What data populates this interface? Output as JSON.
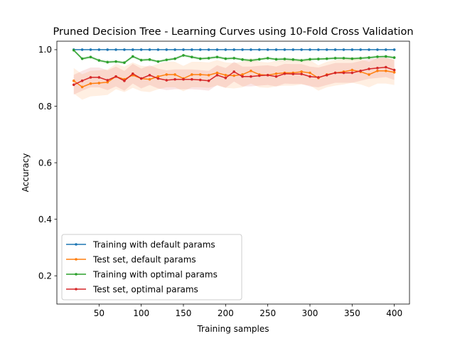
{
  "chart_data": {
    "type": "line",
    "title": "Pruned Decision Tree - Learning Curves using 10-Fold Cross Validation",
    "xlabel": "Training samples",
    "ylabel": "Accuracy",
    "xlim": [
      0,
      418
    ],
    "ylim": [
      0.1,
      1.03
    ],
    "xticks": [
      50,
      100,
      150,
      200,
      250,
      300,
      350,
      400
    ],
    "yticks": [
      0.2,
      0.4,
      0.6,
      0.8,
      1.0
    ],
    "xtick_labels": [
      "50",
      "100",
      "150",
      "200",
      "250",
      "300",
      "350",
      "400"
    ],
    "ytick_labels": [
      "0.2",
      "0.4",
      "0.6",
      "0.8",
      "1.0"
    ],
    "grid": false,
    "legend_position": "lower-left",
    "x": [
      20,
      30,
      40,
      50,
      60,
      70,
      80,
      90,
      100,
      110,
      120,
      130,
      140,
      150,
      160,
      170,
      180,
      190,
      200,
      210,
      220,
      230,
      240,
      250,
      260,
      270,
      280,
      290,
      300,
      310,
      320,
      330,
      340,
      350,
      360,
      370,
      380,
      390,
      400
    ],
    "series": [
      {
        "name": "Training with default params",
        "color": "#1f77b4",
        "values": [
          1.0,
          1.0,
          1.0,
          1.0,
          1.0,
          1.0,
          1.0,
          1.0,
          1.0,
          1.0,
          1.0,
          1.0,
          1.0,
          1.0,
          1.0,
          1.0,
          1.0,
          1.0,
          1.0,
          1.0,
          1.0,
          1.0,
          1.0,
          1.0,
          1.0,
          1.0,
          1.0,
          1.0,
          1.0,
          1.0,
          1.0,
          1.0,
          1.0,
          1.0,
          1.0,
          1.0,
          1.0,
          1.0,
          1.0
        ],
        "band": 0.0
      },
      {
        "name": "Test set, default params",
        "color": "#ff7f0e",
        "values": [
          0.89,
          0.868,
          0.88,
          0.882,
          0.885,
          0.905,
          0.895,
          0.91,
          0.898,
          0.895,
          0.905,
          0.912,
          0.912,
          0.898,
          0.912,
          0.912,
          0.91,
          0.918,
          0.91,
          0.908,
          0.912,
          0.925,
          0.912,
          0.91,
          0.915,
          0.918,
          0.918,
          0.922,
          0.918,
          0.9,
          0.912,
          0.918,
          0.922,
          0.928,
          0.922,
          0.912,
          0.925,
          0.925,
          0.92
        ],
        "band": 0.045
      },
      {
        "name": "Training with optimal params",
        "color": "#2ca02c",
        "values": [
          0.998,
          0.968,
          0.974,
          0.962,
          0.956,
          0.958,
          0.954,
          0.976,
          0.963,
          0.965,
          0.958,
          0.964,
          0.968,
          0.98,
          0.974,
          0.968,
          0.97,
          0.974,
          0.968,
          0.97,
          0.965,
          0.962,
          0.966,
          0.97,
          0.966,
          0.967,
          0.965,
          0.962,
          0.966,
          0.967,
          0.968,
          0.97,
          0.97,
          0.968,
          0.97,
          0.972,
          0.975,
          0.976,
          0.972
        ],
        "band": 0.006
      },
      {
        "name": "Test set, optimal params",
        "color": "#d62728",
        "values": [
          0.876,
          0.89,
          0.902,
          0.902,
          0.892,
          0.905,
          0.89,
          0.915,
          0.898,
          0.91,
          0.898,
          0.892,
          0.895,
          0.895,
          0.895,
          0.893,
          0.89,
          0.91,
          0.9,
          0.922,
          0.905,
          0.905,
          0.908,
          0.91,
          0.905,
          0.915,
          0.914,
          0.914,
          0.905,
          0.902,
          0.91,
          0.918,
          0.918,
          0.918,
          0.925,
          0.932,
          0.935,
          0.938,
          0.928
        ],
        "band": 0.035
      }
    ]
  }
}
